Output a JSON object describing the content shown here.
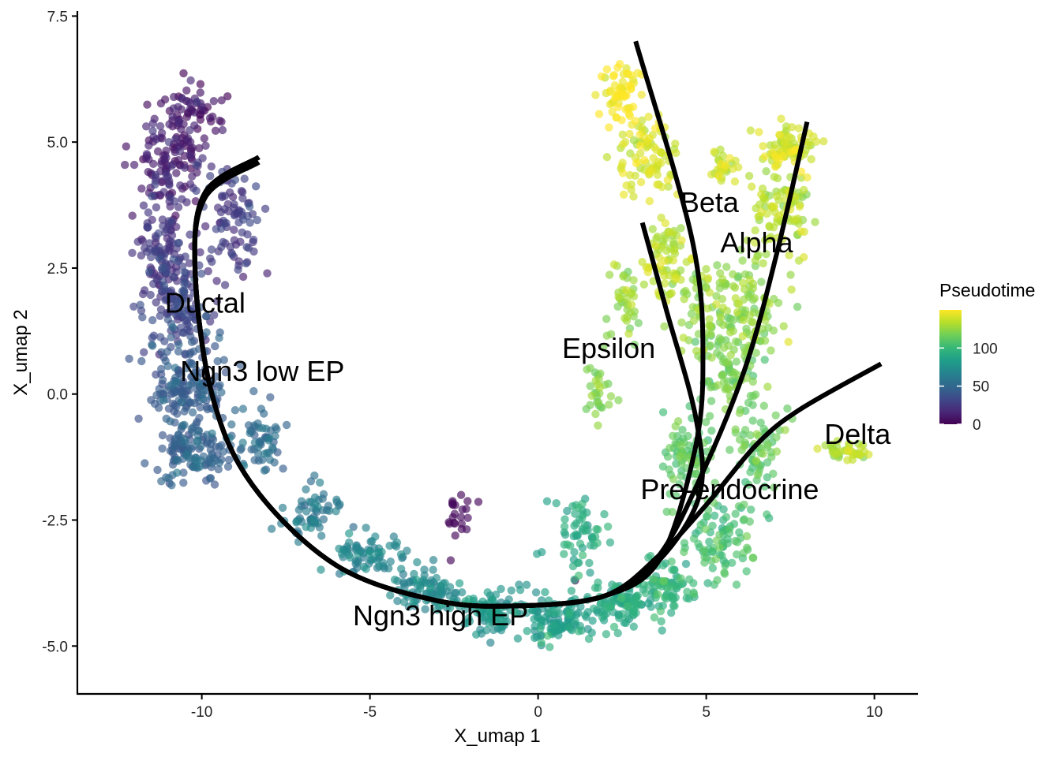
{
  "chart_data": {
    "type": "scatter",
    "xlabel": "X_umap 1",
    "ylabel": "X_umap 2",
    "xlim": [
      -13.7,
      11.3
    ],
    "ylim": [
      -5.95,
      7.6
    ],
    "x_ticks": [
      -10,
      -5,
      0,
      5,
      10
    ],
    "x_tick_labels": [
      "-10",
      "-5",
      "0",
      "5",
      "10"
    ],
    "y_ticks": [
      -5.0,
      -2.5,
      0.0,
      2.5,
      5.0,
      7.5
    ],
    "y_tick_labels": [
      "-5.0",
      "-2.5",
      "0.0",
      "2.5",
      "5.0",
      "7.5"
    ],
    "grid": false,
    "color_scale": {
      "title": "Pseudotime",
      "palette": "viridis",
      "range": [
        0,
        150
      ],
      "ticks": [
        0,
        50,
        100
      ],
      "tick_labels": [
        "0",
        "50",
        "100"
      ],
      "stops": [
        "#440154",
        "#482878",
        "#3e4a89",
        "#31688e",
        "#26828e",
        "#1f9e89",
        "#35b779",
        "#6ece58",
        "#b5de2b",
        "#fde725"
      ]
    },
    "legend_placement": "right",
    "point_opacity": 0.65,
    "clusters": [
      {
        "name": "Ductal",
        "x": -9.9,
        "y": 1.8,
        "pseudotime": 20
      },
      {
        "name": "Ngn3 low EP",
        "x": -8.2,
        "y": 0.45,
        "pseudotime": 45
      },
      {
        "name": "Ngn3 high EP",
        "x": -2.9,
        "y": -4.4,
        "pseudotime": 75
      },
      {
        "name": "Pre-endocrine",
        "x": 5.7,
        "y": -1.9,
        "pseudotime": 110
      },
      {
        "name": "Epsilon",
        "x": 2.1,
        "y": 0.9,
        "pseudotime": 125
      },
      {
        "name": "Beta",
        "x": 5.1,
        "y": 3.8,
        "pseudotime": 140
      },
      {
        "name": "Alpha",
        "x": 6.5,
        "y": 3.0,
        "pseudotime": 135
      },
      {
        "name": "Delta",
        "x": 9.5,
        "y": -0.8,
        "pseudotime": 130
      }
    ],
    "trajectories": [
      {
        "name": "Beta",
        "points": [
          [
            -8.3,
            4.7
          ],
          [
            -9.9,
            4.0
          ],
          [
            -10.2,
            2.5
          ],
          [
            -9.7,
            0.0
          ],
          [
            -8.5,
            -1.8
          ],
          [
            -6.0,
            -3.4
          ],
          [
            -3.0,
            -4.1
          ],
          [
            -0.5,
            -4.2
          ],
          [
            2.0,
            -4.0
          ],
          [
            3.6,
            -3.3
          ],
          [
            4.6,
            -1.3
          ],
          [
            4.9,
            0.5
          ],
          [
            4.6,
            3.0
          ],
          [
            2.9,
            7.0
          ]
        ]
      },
      {
        "name": "Alpha",
        "points": [
          [
            -8.3,
            4.7
          ],
          [
            -9.9,
            4.0
          ],
          [
            -10.2,
            2.5
          ],
          [
            -9.7,
            0.0
          ],
          [
            -8.5,
            -1.8
          ],
          [
            -6.0,
            -3.4
          ],
          [
            -3.0,
            -4.1
          ],
          [
            -0.5,
            -4.2
          ],
          [
            2.0,
            -4.0
          ],
          [
            3.6,
            -3.2
          ],
          [
            5.0,
            -1.4
          ],
          [
            6.2,
            0.6
          ],
          [
            7.1,
            2.8
          ],
          [
            8.0,
            5.4
          ]
        ]
      },
      {
        "name": "Epsilon",
        "points": [
          [
            -8.3,
            4.6
          ],
          [
            -9.9,
            3.9
          ],
          [
            -10.2,
            2.4
          ],
          [
            -9.7,
            0.0
          ],
          [
            -8.5,
            -1.8
          ],
          [
            -6.0,
            -3.4
          ],
          [
            -3.0,
            -4.1
          ],
          [
            -0.5,
            -4.2
          ],
          [
            2.0,
            -4.0
          ],
          [
            3.6,
            -3.3
          ],
          [
            4.8,
            -2.0
          ],
          [
            4.7,
            -0.5
          ],
          [
            3.8,
            1.7
          ],
          [
            3.1,
            3.4
          ]
        ]
      },
      {
        "name": "Delta",
        "points": [
          [
            -8.3,
            4.7
          ],
          [
            -9.9,
            4.0
          ],
          [
            -10.2,
            2.5
          ],
          [
            -9.7,
            0.0
          ],
          [
            -8.5,
            -1.8
          ],
          [
            -6.0,
            -3.4
          ],
          [
            -3.0,
            -4.1
          ],
          [
            -0.5,
            -4.2
          ],
          [
            2.0,
            -4.0
          ],
          [
            3.6,
            -3.2
          ],
          [
            5.0,
            -2.2
          ],
          [
            6.5,
            -1.0
          ],
          [
            7.8,
            -0.3
          ],
          [
            10.2,
            0.6
          ]
        ]
      }
    ],
    "outlier_group": {
      "x": -2.4,
      "y": -2.4,
      "pseudotime": 2
    },
    "outlier_point": {
      "x": 1.1,
      "y": -3.7,
      "pseudotime": 2
    }
  }
}
